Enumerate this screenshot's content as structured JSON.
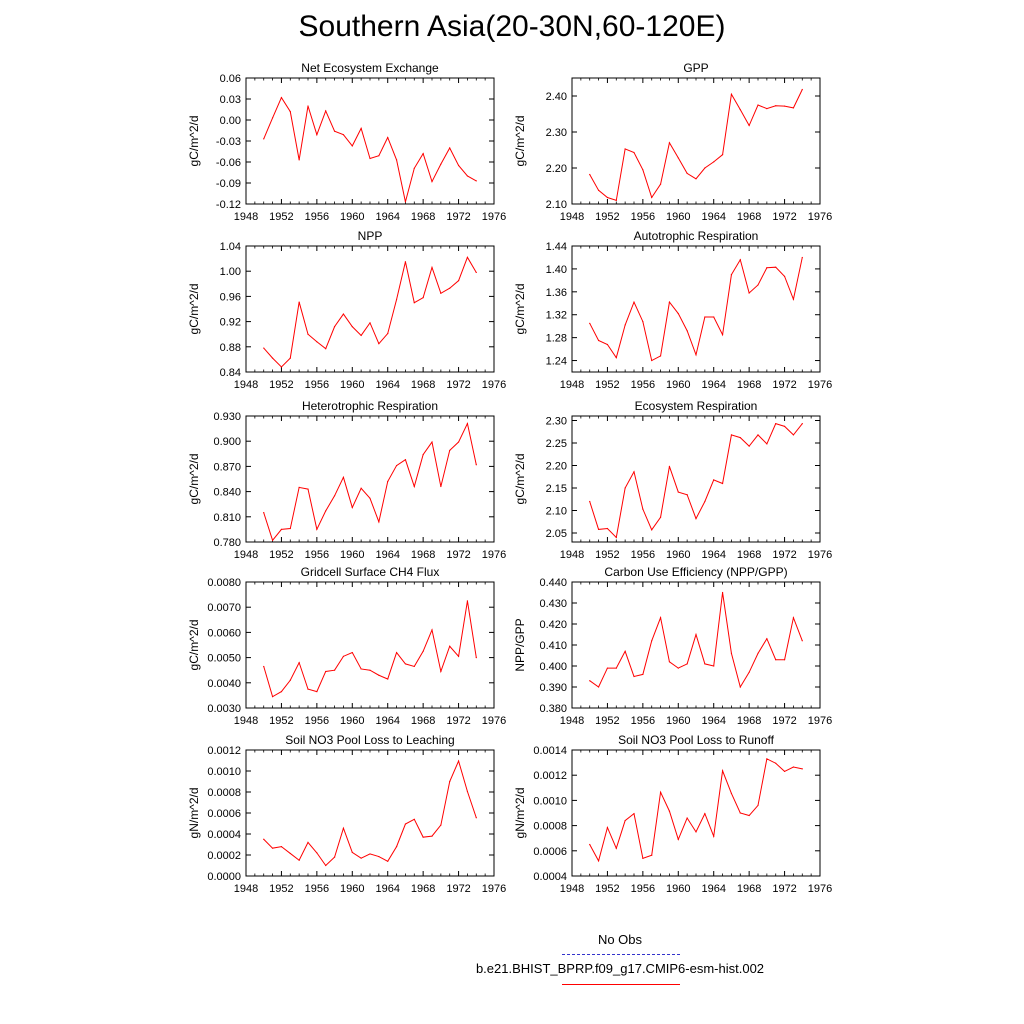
{
  "title": "Southern Asia(20-30N,60-120E)",
  "colors": {
    "series": "#ff0000",
    "no_obs": "#3333cc",
    "axis": "#000000"
  },
  "legend": {
    "no_obs_label": "No Obs",
    "case_label": "b.e21.BHIST_BPRP.f09_g17.CMIP6-esm-hist.002"
  },
  "chart_data": [
    {
      "type": "line",
      "title": "Net Ecosystem Exchange",
      "ylabel": "gC/m^2/d",
      "xlim": [
        1948,
        1976
      ],
      "ylim": [
        -0.12,
        0.06
      ],
      "xticks": [
        "1948",
        "1952",
        "1956",
        "1960",
        "1964",
        "1968",
        "1972",
        "1976"
      ],
      "yticks": [
        "-0.12",
        "-0.09",
        "-0.06",
        "-0.03",
        "0.00",
        "0.03",
        "0.06"
      ],
      "x": [
        1950,
        1951,
        1952,
        1953,
        1954,
        1955,
        1956,
        1957,
        1958,
        1959,
        1960,
        1961,
        1962,
        1963,
        1964,
        1965,
        1966,
        1967,
        1968,
        1969,
        1970,
        1971,
        1972,
        1973,
        1974
      ],
      "values": [
        -0.027,
        0.003,
        0.032,
        0.012,
        -0.057,
        0.02,
        -0.021,
        0.013,
        -0.016,
        -0.021,
        -0.037,
        -0.012,
        -0.055,
        -0.051,
        -0.025,
        -0.057,
        -0.117,
        -0.069,
        -0.048,
        -0.088,
        -0.063,
        -0.04,
        -0.065,
        -0.08,
        -0.087
      ]
    },
    {
      "type": "line",
      "title": "GPP",
      "ylabel": "gC/m^2/d",
      "xlim": [
        1948,
        1976
      ],
      "ylim": [
        2.1,
        2.45
      ],
      "xticks": [
        "1948",
        "1952",
        "1956",
        "1960",
        "1964",
        "1968",
        "1972",
        "1976"
      ],
      "yticks": [
        "2.10",
        "2.20",
        "2.30",
        "2.40"
      ],
      "x": [
        1950,
        1951,
        1952,
        1953,
        1954,
        1955,
        1956,
        1957,
        1958,
        1959,
        1960,
        1961,
        1962,
        1963,
        1964,
        1965,
        1966,
        1967,
        1968,
        1969,
        1970,
        1971,
        1972,
        1973,
        1974
      ],
      "values": [
        2.182,
        2.138,
        2.118,
        2.11,
        2.253,
        2.243,
        2.195,
        2.118,
        2.155,
        2.27,
        2.228,
        2.185,
        2.17,
        2.2,
        2.217,
        2.237,
        2.405,
        2.362,
        2.318,
        2.375,
        2.365,
        2.373,
        2.372,
        2.367,
        2.418
      ]
    },
    {
      "type": "line",
      "title": "NPP",
      "ylabel": "gC/m^2/d",
      "xlim": [
        1948,
        1976
      ],
      "ylim": [
        0.84,
        1.04
      ],
      "xticks": [
        "1948",
        "1952",
        "1956",
        "1960",
        "1964",
        "1968",
        "1972",
        "1976"
      ],
      "yticks": [
        "0.84",
        "0.88",
        "0.92",
        "0.96",
        "1.00",
        "1.04"
      ],
      "x": [
        1950,
        1951,
        1952,
        1953,
        1954,
        1955,
        1956,
        1957,
        1958,
        1959,
        1960,
        1961,
        1962,
        1963,
        1964,
        1965,
        1966,
        1967,
        1968,
        1969,
        1970,
        1971,
        1972,
        1973,
        1974
      ],
      "values": [
        0.878,
        0.862,
        0.848,
        0.862,
        0.951,
        0.9,
        0.888,
        0.877,
        0.912,
        0.932,
        0.912,
        0.898,
        0.918,
        0.885,
        0.901,
        0.955,
        1.015,
        0.95,
        0.958,
        1.006,
        0.965,
        0.973,
        0.985,
        1.022,
        0.998
      ]
    },
    {
      "type": "line",
      "title": "Autotrophic Respiration",
      "ylabel": "gC/m^2/d",
      "xlim": [
        1948,
        1976
      ],
      "ylim": [
        1.22,
        1.44
      ],
      "xticks": [
        "1948",
        "1952",
        "1956",
        "1960",
        "1964",
        "1968",
        "1972",
        "1976"
      ],
      "yticks": [
        "1.24",
        "1.28",
        "1.32",
        "1.36",
        "1.40",
        "1.44"
      ],
      "x": [
        1950,
        1951,
        1952,
        1953,
        1954,
        1955,
        1956,
        1957,
        1958,
        1959,
        1960,
        1961,
        1962,
        1963,
        1964,
        1965,
        1966,
        1967,
        1968,
        1969,
        1970,
        1971,
        1972,
        1973,
        1974
      ],
      "values": [
        1.305,
        1.275,
        1.268,
        1.245,
        1.302,
        1.342,
        1.308,
        1.24,
        1.248,
        1.342,
        1.322,
        1.292,
        1.25,
        1.316,
        1.316,
        1.285,
        1.39,
        1.416,
        1.358,
        1.372,
        1.402,
        1.403,
        1.387,
        1.347,
        1.42
      ]
    },
    {
      "type": "line",
      "title": "Heterotrophic Respiration",
      "ylabel": "gC/m^2/d",
      "xlim": [
        1948,
        1976
      ],
      "ylim": [
        0.78,
        0.93
      ],
      "xticks": [
        "1948",
        "1952",
        "1956",
        "1960",
        "1964",
        "1968",
        "1972",
        "1976"
      ],
      "yticks": [
        "0.780",
        "0.810",
        "0.840",
        "0.870",
        "0.900",
        "0.930"
      ],
      "x": [
        1950,
        1951,
        1952,
        1953,
        1954,
        1955,
        1956,
        1957,
        1958,
        1959,
        1960,
        1961,
        1962,
        1963,
        1964,
        1965,
        1966,
        1967,
        1968,
        1969,
        1970,
        1971,
        1972,
        1973,
        1974
      ],
      "values": [
        0.815,
        0.782,
        0.795,
        0.796,
        0.845,
        0.843,
        0.795,
        0.817,
        0.835,
        0.857,
        0.821,
        0.844,
        0.832,
        0.804,
        0.852,
        0.871,
        0.878,
        0.846,
        0.884,
        0.899,
        0.846,
        0.889,
        0.899,
        0.921,
        0.872
      ]
    },
    {
      "type": "line",
      "title": "Ecosystem Respiration",
      "ylabel": "gC/m^2/d",
      "xlim": [
        1948,
        1976
      ],
      "ylim": [
        2.03,
        2.31
      ],
      "xticks": [
        "1948",
        "1952",
        "1956",
        "1960",
        "1964",
        "1968",
        "1972",
        "1976"
      ],
      "yticks": [
        "2.05",
        "2.10",
        "2.15",
        "2.20",
        "2.25",
        "2.30"
      ],
      "x": [
        1950,
        1951,
        1952,
        1953,
        1954,
        1955,
        1956,
        1957,
        1958,
        1959,
        1960,
        1961,
        1962,
        1963,
        1964,
        1965,
        1966,
        1967,
        1968,
        1969,
        1970,
        1971,
        1972,
        1973,
        1974
      ],
      "values": [
        2.12,
        2.058,
        2.06,
        2.04,
        2.15,
        2.186,
        2.103,
        2.057,
        2.085,
        2.198,
        2.141,
        2.135,
        2.082,
        2.12,
        2.168,
        2.16,
        2.268,
        2.262,
        2.243,
        2.268,
        2.248,
        2.293,
        2.287,
        2.268,
        2.293
      ]
    },
    {
      "type": "line",
      "title": "Gridcell Surface CH4 Flux",
      "ylabel": "gC/m^2/d",
      "xlim": [
        1948,
        1976
      ],
      "ylim": [
        0.003,
        0.008
      ],
      "xticks": [
        "1948",
        "1952",
        "1956",
        "1960",
        "1964",
        "1968",
        "1972",
        "1976"
      ],
      "yticks": [
        "0.0030",
        "0.0040",
        "0.0050",
        "0.0060",
        "0.0070",
        "0.0080"
      ],
      "x": [
        1950,
        1951,
        1952,
        1953,
        1954,
        1955,
        1956,
        1957,
        1958,
        1959,
        1960,
        1961,
        1962,
        1963,
        1964,
        1965,
        1966,
        1967,
        1968,
        1969,
        1970,
        1971,
        1972,
        1973,
        1974
      ],
      "values": [
        0.00465,
        0.00345,
        0.00365,
        0.0041,
        0.0048,
        0.00375,
        0.00365,
        0.00445,
        0.0045,
        0.00505,
        0.0052,
        0.00455,
        0.0045,
        0.0043,
        0.00415,
        0.0052,
        0.00475,
        0.00465,
        0.00525,
        0.0061,
        0.00445,
        0.00545,
        0.00505,
        0.00725,
        0.005
      ]
    },
    {
      "type": "line",
      "title": "Carbon Use Efficiency (NPP/GPP)",
      "ylabel": "NPP/GPP",
      "xlim": [
        1948,
        1976
      ],
      "ylim": [
        0.38,
        0.44
      ],
      "xticks": [
        "1948",
        "1952",
        "1956",
        "1960",
        "1964",
        "1968",
        "1972",
        "1976"
      ],
      "yticks": [
        "0.380",
        "0.390",
        "0.400",
        "0.410",
        "0.420",
        "0.430",
        "0.440"
      ],
      "x": [
        1950,
        1951,
        1952,
        1953,
        1954,
        1955,
        1956,
        1957,
        1958,
        1959,
        1960,
        1961,
        1962,
        1963,
        1964,
        1965,
        1966,
        1967,
        1968,
        1969,
        1970,
        1971,
        1972,
        1973,
        1974
      ],
      "values": [
        0.393,
        0.39,
        0.399,
        0.399,
        0.407,
        0.395,
        0.396,
        0.412,
        0.423,
        0.402,
        0.399,
        0.401,
        0.415,
        0.401,
        0.4,
        0.435,
        0.406,
        0.39,
        0.397,
        0.406,
        0.413,
        0.403,
        0.403,
        0.423,
        0.412
      ]
    },
    {
      "type": "line",
      "title": "Soil NO3 Pool Loss to Leaching",
      "ylabel": "gN/m^2/d",
      "xlim": [
        1948,
        1976
      ],
      "ylim": [
        0.0,
        0.0012
      ],
      "xticks": [
        "1948",
        "1952",
        "1956",
        "1960",
        "1964",
        "1968",
        "1972",
        "1976"
      ],
      "yticks": [
        "0.0000",
        "0.0002",
        "0.0004",
        "0.0006",
        "0.0008",
        "0.0010",
        "0.0012"
      ],
      "x": [
        1950,
        1951,
        1952,
        1953,
        1954,
        1955,
        1956,
        1957,
        1958,
        1959,
        1960,
        1961,
        1962,
        1963,
        1964,
        1965,
        1966,
        1967,
        1968,
        1969,
        1970,
        1971,
        1972,
        1973,
        1974
      ],
      "values": [
        0.00035,
        0.000265,
        0.00028,
        0.000215,
        0.00015,
        0.00032,
        0.00022,
        0.0001,
        0.00018,
        0.000455,
        0.000225,
        0.00017,
        0.00021,
        0.000185,
        0.00014,
        0.00028,
        0.000495,
        0.00054,
        0.00037,
        0.00038,
        0.000485,
        0.0009,
        0.001095,
        0.000805,
        0.000555
      ]
    },
    {
      "type": "line",
      "title": "Soil NO3 Pool Loss to Runoff",
      "ylabel": "gN/m^2/d",
      "xlim": [
        1948,
        1976
      ],
      "ylim": [
        0.0004,
        0.0014
      ],
      "xticks": [
        "1948",
        "1952",
        "1956",
        "1960",
        "1964",
        "1968",
        "1972",
        "1976"
      ],
      "yticks": [
        "0.0004",
        "0.0006",
        "0.0008",
        "0.0010",
        "0.0012",
        "0.0014"
      ],
      "x": [
        1950,
        1951,
        1952,
        1953,
        1954,
        1955,
        1956,
        1957,
        1958,
        1959,
        1960,
        1961,
        1962,
        1963,
        1964,
        1965,
        1966,
        1967,
        1968,
        1969,
        1970,
        1971,
        1972,
        1973,
        1974
      ],
      "values": [
        0.00065,
        0.00052,
        0.000785,
        0.00062,
        0.00084,
        0.000895,
        0.00054,
        0.000565,
        0.001065,
        0.000915,
        0.00069,
        0.00086,
        0.00075,
        0.000895,
        0.000715,
        0.001235,
        0.001055,
        0.0009,
        0.00088,
        0.00096,
        0.00133,
        0.001295,
        0.00123,
        0.001265,
        0.00125
      ]
    }
  ]
}
